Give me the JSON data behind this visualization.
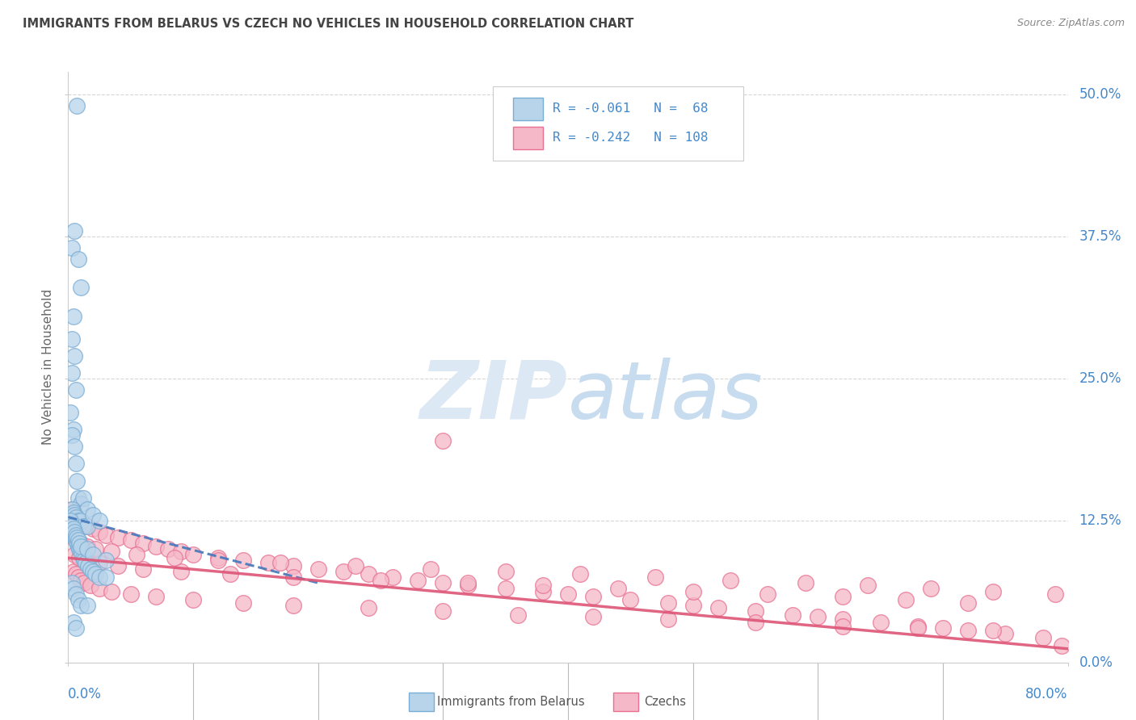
{
  "title": "IMMIGRANTS FROM BELARUS VS CZECH NO VEHICLES IN HOUSEHOLD CORRELATION CHART",
  "source": "Source: ZipAtlas.com",
  "ylabel": "No Vehicles in Household",
  "ytick_labels": [
    "0.0%",
    "12.5%",
    "25.0%",
    "37.5%",
    "50.0%"
  ],
  "ytick_values": [
    0.0,
    12.5,
    25.0,
    37.5,
    50.0
  ],
  "xlim": [
    0.0,
    80.0
  ],
  "ylim": [
    0.0,
    52.0
  ],
  "legend_blue_label": "Immigrants from Belarus",
  "legend_pink_label": "Czechs",
  "r_blue": -0.061,
  "n_blue": 68,
  "r_pink": -0.242,
  "n_pink": 108,
  "color_blue_fill": "#b8d4ea",
  "color_pink_fill": "#f5b8c8",
  "color_blue_edge": "#7aadd4",
  "color_pink_edge": "#e87090",
  "color_blue_line": "#4477bb",
  "color_pink_line": "#dd5577",
  "watermark_zip": "#dce9f5",
  "watermark_atlas": "#c8dcf0",
  "title_color": "#444444",
  "axis_label_color": "#4488cc",
  "grid_color": "#cccccc",
  "blue_trend_x": [
    0.0,
    20.0
  ],
  "blue_trend_y": [
    12.8,
    7.0
  ],
  "pink_trend_x": [
    0.0,
    80.0
  ],
  "pink_trend_y": [
    9.2,
    1.2
  ],
  "blue_pts_x": [
    0.7,
    0.5,
    0.3,
    0.8,
    1.0,
    0.4,
    0.3,
    0.5,
    0.3,
    0.6,
    0.2,
    0.4,
    0.3,
    0.5,
    0.6,
    0.7,
    0.8,
    1.0,
    1.2,
    1.5,
    0.3,
    0.4,
    0.5,
    0.6,
    0.8,
    1.0,
    1.2,
    1.5,
    2.0,
    2.5,
    0.3,
    0.4,
    0.5,
    0.6,
    0.7,
    0.8,
    0.9,
    1.0,
    1.1,
    1.2,
    1.3,
    1.4,
    1.6,
    1.8,
    2.0,
    2.2,
    2.5,
    3.0,
    0.2,
    0.3,
    0.4,
    0.5,
    0.6,
    0.7,
    0.8,
    0.9,
    1.0,
    1.5,
    2.0,
    3.0,
    0.3,
    0.4,
    0.6,
    0.8,
    1.0,
    1.5,
    0.4,
    0.6
  ],
  "blue_pts_y": [
    49.0,
    38.0,
    36.5,
    35.5,
    33.0,
    30.5,
    28.5,
    27.0,
    25.5,
    24.0,
    22.0,
    20.5,
    20.0,
    19.0,
    17.5,
    16.0,
    14.5,
    14.0,
    14.5,
    13.5,
    13.5,
    13.2,
    13.0,
    12.8,
    12.5,
    12.5,
    12.0,
    12.0,
    13.0,
    12.5,
    11.5,
    11.2,
    11.0,
    10.8,
    10.5,
    10.2,
    10.0,
    9.8,
    9.5,
    9.2,
    9.0,
    8.8,
    8.5,
    8.2,
    8.0,
    7.8,
    7.5,
    7.5,
    12.5,
    12.0,
    11.8,
    11.5,
    11.2,
    11.0,
    10.8,
    10.5,
    10.2,
    10.0,
    9.5,
    9.0,
    7.0,
    6.5,
    6.0,
    5.5,
    5.0,
    5.0,
    3.5,
    3.0
  ],
  "pink_pts_x": [
    0.3,
    0.5,
    0.7,
    0.9,
    1.2,
    1.5,
    2.0,
    2.5,
    3.0,
    4.0,
    5.0,
    6.0,
    7.0,
    8.0,
    9.0,
    10.0,
    12.0,
    14.0,
    16.0,
    18.0,
    20.0,
    22.0,
    24.0,
    26.0,
    28.0,
    30.0,
    32.0,
    35.0,
    38.0,
    40.0,
    42.0,
    45.0,
    48.0,
    50.0,
    52.0,
    55.0,
    58.0,
    60.0,
    62.0,
    65.0,
    68.0,
    70.0,
    72.0,
    75.0,
    78.0,
    79.5,
    0.4,
    0.6,
    0.8,
    1.0,
    1.3,
    1.8,
    2.5,
    3.5,
    5.0,
    7.0,
    10.0,
    14.0,
    18.0,
    24.0,
    30.0,
    36.0,
    42.0,
    48.0,
    55.0,
    62.0,
    68.0,
    74.0,
    0.5,
    0.9,
    1.5,
    2.5,
    4.0,
    6.0,
    9.0,
    13.0,
    18.0,
    25.0,
    32.0,
    38.0,
    44.0,
    50.0,
    56.0,
    62.0,
    67.0,
    72.0,
    0.4,
    0.7,
    1.0,
    1.5,
    2.2,
    3.5,
    5.5,
    8.5,
    12.0,
    17.0,
    23.0,
    29.0,
    35.0,
    41.0,
    47.0,
    53.0,
    59.0,
    64.0,
    69.0,
    74.0,
    79.0,
    30.0
  ],
  "pink_pts_y": [
    13.5,
    13.0,
    12.8,
    12.5,
    12.2,
    12.0,
    11.8,
    11.5,
    11.2,
    11.0,
    10.8,
    10.5,
    10.2,
    10.0,
    9.8,
    9.5,
    9.2,
    9.0,
    8.8,
    8.5,
    8.2,
    8.0,
    7.8,
    7.5,
    7.2,
    7.0,
    6.8,
    6.5,
    6.2,
    6.0,
    5.8,
    5.5,
    5.2,
    5.0,
    4.8,
    4.5,
    4.2,
    4.0,
    3.8,
    3.5,
    3.2,
    3.0,
    2.8,
    2.5,
    2.2,
    1.5,
    8.0,
    7.8,
    7.5,
    7.2,
    7.0,
    6.8,
    6.5,
    6.2,
    6.0,
    5.8,
    5.5,
    5.2,
    5.0,
    4.8,
    4.5,
    4.2,
    4.0,
    3.8,
    3.5,
    3.2,
    3.0,
    2.8,
    9.5,
    9.2,
    9.0,
    8.8,
    8.5,
    8.2,
    8.0,
    7.8,
    7.5,
    7.2,
    7.0,
    6.8,
    6.5,
    6.2,
    6.0,
    5.8,
    5.5,
    5.2,
    11.0,
    10.8,
    10.5,
    10.2,
    10.0,
    9.8,
    9.5,
    9.2,
    9.0,
    8.8,
    8.5,
    8.2,
    8.0,
    7.8,
    7.5,
    7.2,
    7.0,
    6.8,
    6.5,
    6.2,
    6.0,
    19.5
  ]
}
